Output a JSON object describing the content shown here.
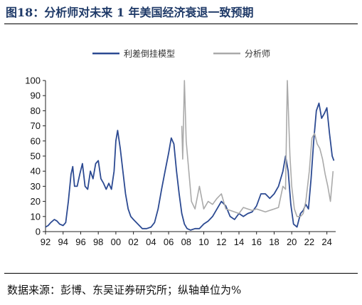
{
  "title": "图18：分析师对未来 1 年美国经济衰退一致预期",
  "source": "数据来源：彭博、东吴证券研究所；纵轴单位为%",
  "chart_data": {
    "type": "line",
    "ylim": [
      0,
      100
    ],
    "yticks": [
      "0",
      "10",
      "20",
      "30",
      "40",
      "50",
      "60",
      "70",
      "80",
      "90",
      "100"
    ],
    "xlim": [
      1992,
      2025
    ],
    "xticks": [
      "92",
      "94",
      "96",
      "98",
      "00",
      "02",
      "04",
      "06",
      "08",
      "10",
      "12",
      "14",
      "16",
      "18",
      "20",
      "22",
      "24"
    ],
    "legend_position": "top-center",
    "series": [
      {
        "name": "利差倒挂模型",
        "color": "#2c4a92",
        "x": [
          1992.0,
          1992.3,
          1992.6,
          1993.0,
          1993.3,
          1993.6,
          1994.0,
          1994.3,
          1994.6,
          1994.9,
          1995.1,
          1995.3,
          1995.6,
          1995.9,
          1996.2,
          1996.5,
          1996.8,
          1997.1,
          1997.4,
          1997.7,
          1998.0,
          1998.3,
          1998.6,
          1998.9,
          1999.2,
          1999.5,
          1999.8,
          2000.0,
          2000.2,
          2000.5,
          2000.8,
          2001.1,
          2001.4,
          2001.7,
          2002.0,
          2002.5,
          2003.0,
          2003.5,
          2004.0,
          2004.4,
          2004.8,
          2005.2,
          2005.6,
          2006.0,
          2006.3,
          2006.6,
          2006.9,
          2007.2,
          2007.5,
          2007.8,
          2008.1,
          2008.5,
          2009.0,
          2009.5,
          2010.0,
          2010.5,
          2011.0,
          2011.5,
          2012.0,
          2012.5,
          2013.0,
          2013.5,
          2014.0,
          2014.5,
          2015.0,
          2015.5,
          2016.0,
          2016.5,
          2017.0,
          2017.5,
          2018.0,
          2018.5,
          2019.0,
          2019.3,
          2019.6,
          2019.9,
          2020.2,
          2020.6,
          2021.0,
          2021.3,
          2021.6,
          2021.9,
          2022.2,
          2022.5,
          2022.8,
          2023.1,
          2023.4,
          2023.7,
          2024.0,
          2024.3,
          2024.6,
          2024.8
        ],
        "values": [
          3,
          4,
          6,
          8,
          7,
          5,
          4,
          6,
          20,
          38,
          43,
          30,
          30,
          38,
          45,
          30,
          28,
          40,
          35,
          45,
          47,
          35,
          32,
          28,
          32,
          28,
          40,
          60,
          67,
          55,
          40,
          25,
          15,
          10,
          8,
          5,
          2,
          2,
          3,
          6,
          15,
          28,
          40,
          52,
          62,
          58,
          40,
          25,
          12,
          5,
          2,
          1,
          2,
          2,
          5,
          7,
          10,
          15,
          20,
          17,
          10,
          8,
          12,
          10,
          12,
          13,
          17,
          25,
          25,
          22,
          25,
          30,
          40,
          50,
          40,
          18,
          5,
          3,
          12,
          14,
          18,
          15,
          35,
          60,
          80,
          85,
          75,
          78,
          82,
          65,
          50,
          47
        ]
      },
      {
        "name": "分析师",
        "color": "#aaaaaa",
        "x": [
          2007.5,
          2007.6,
          2007.8,
          2008.0,
          2008.3,
          2008.6,
          2009.0,
          2009.5,
          2010.0,
          2010.5,
          2011.0,
          2011.5,
          2012.0,
          2012.5,
          2013.0,
          2013.5,
          2014.0,
          2014.5,
          2015.0,
          2015.5,
          2016.0,
          2016.5,
          2017.0,
          2017.5,
          2018.0,
          2018.5,
          2019.0,
          2019.3,
          2019.5,
          2019.8,
          2020.0,
          2020.3,
          2020.6,
          2021.0,
          2021.3,
          2021.6,
          2022.0,
          2022.3,
          2022.6,
          2022.9,
          2023.2,
          2023.5,
          2023.8,
          2024.1,
          2024.4,
          2024.7
        ],
        "values": [
          70,
          48,
          100,
          60,
          40,
          20,
          15,
          30,
          15,
          20,
          18,
          22,
          25,
          15,
          14,
          13,
          12,
          16,
          15,
          14,
          15,
          14,
          13,
          14,
          15,
          16,
          30,
          28,
          100,
          50,
          30,
          15,
          10,
          10,
          12,
          20,
          40,
          62,
          65,
          58,
          55,
          48,
          38,
          30,
          20,
          40
        ]
      }
    ]
  }
}
